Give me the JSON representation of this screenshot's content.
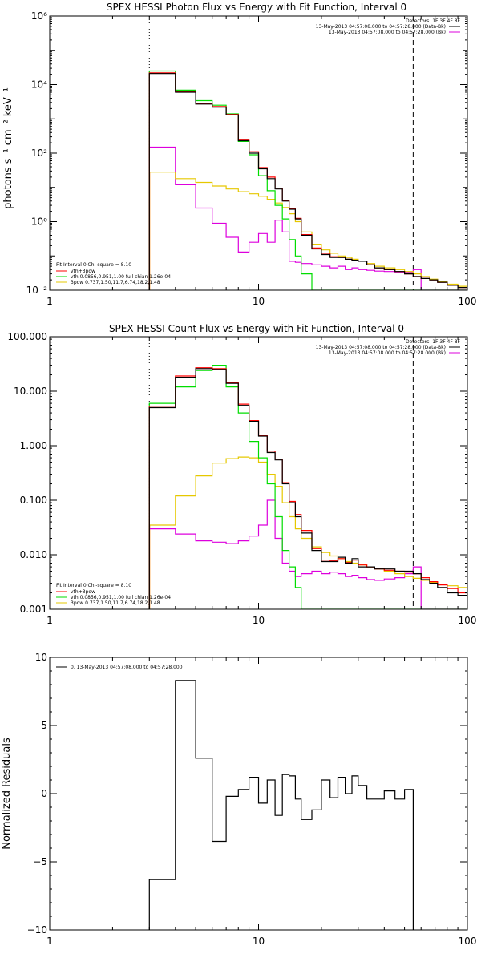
{
  "colors": {
    "data": "#000000",
    "vth_plus_3pow": "#ff0000",
    "vth": "#00dd00",
    "3pow": "#e6c800",
    "background": "#dd00dd",
    "cutoff": "#ff8800"
  },
  "panels": {
    "photon": {
      "title": "SPEX HESSI Photon Flux vs Energy with Fit Function, Interval 0",
      "ylabel": "photons s⁻¹ cm⁻² keV⁻¹",
      "legend_right": {
        "detectors": "Detectors: 1F 3F 4F 8F",
        "line1": "13-May-2013 04:57:08.000 to 04:57:28.000 (Data-Bk)",
        "line2": "13-May-2013 04:57:08.000 to 04:57:28.000 (Bk)"
      },
      "legend_left": {
        "fit": "Fit Interval 0    Chi-square = 8.10",
        "l1": "vth+3pow",
        "l2": "vth 0.0856,0.951,1.00  full chian 1.26e-04",
        "l3": "3pow 0.737,1.50,11.7,6.74,18.2,1.48"
      }
    },
    "count": {
      "title": "SPEX HESSI Count Flux vs Energy with Fit Function, Interval 0",
      "legend_right": {
        "detectors": "Detectors: 1F 3F 4F 8F",
        "line1": "13-May-2013 04:57:08.000 to 04:57:28.000 (Data-Bk)",
        "line2": "13-May-2013 04:57:08.000 to 04:57:28.000 (Bk)"
      },
      "legend_left": {
        "fit": "Fit Interval 0    Chi-square = 8.10",
        "l1": "vth+3pow",
        "l2": "vth 0.0856,0.951,1.00  full chian 1.26e-04",
        "l3": "3pow 0.737,1.50,11.7,6.74,18.2,1.48"
      }
    },
    "resid": {
      "ylabel": "Normalized Residuals",
      "legend": "0. 13-May-2013 04:57:08.000 to 04:57:28.000"
    }
  },
  "chart_data": [
    {
      "type": "line",
      "title": "SPEX HESSI Photon Flux vs Energy with Fit Function, Interval 0",
      "ylabel": "photons s⁻¹ cm⁻² keV⁻¹",
      "xscale": "log",
      "yscale": "log",
      "xlim": [
        1,
        100
      ],
      "ylim": [
        0.01,
        1000000
      ],
      "xticks": [
        "1",
        "10",
        "100"
      ],
      "yticks": [
        "10⁻²",
        "10⁰",
        "10²",
        "10⁴",
        "10⁶"
      ],
      "energy_edges": [
        3,
        4,
        5,
        6,
        7,
        8,
        9,
        10,
        11,
        12,
        13,
        14,
        15,
        16,
        18,
        20,
        22,
        24,
        26,
        28,
        30,
        33,
        36,
        40,
        45,
        50,
        55,
        60,
        66,
        72,
        80,
        90,
        100
      ],
      "vlines": [
        3,
        55
      ],
      "series": [
        {
          "name": "Data-Bk",
          "values": [
            21000,
            6000,
            2700,
            2200,
            1300,
            230,
            100,
            35,
            18,
            9,
            4,
            2.3,
            1.2,
            0.4,
            0.16,
            0.11,
            0.09,
            0.09,
            0.08,
            0.075,
            0.07,
            0.055,
            0.045,
            0.04,
            0.035,
            0.03,
            0.025,
            0.022,
            0.02,
            0.017,
            0.014,
            0.012
          ]
        },
        {
          "name": "vth+3pow",
          "values": [
            22000,
            6200,
            2800,
            2300,
            1350,
            240,
            110,
            38,
            20,
            9.5,
            4.2,
            2.4,
            1.25,
            0.42,
            0.17,
            0.12,
            0.095,
            0.09,
            0.08,
            0.075,
            0.07,
            0.055,
            0.045,
            0.04,
            0.035,
            0.03,
            0.025,
            0.022,
            0.02,
            0.017,
            0.014,
            0.012
          ]
        },
        {
          "name": "vth",
          "values": [
            25000,
            6900,
            3400,
            2500,
            1400,
            220,
            90,
            22,
            8,
            3,
            1.2,
            0.3,
            0.1,
            0.03,
            0.01,
            0.01,
            0.01,
            0.01,
            0.01,
            0.01,
            0.01,
            0.01,
            0.01,
            0.01,
            0.01,
            0.01,
            0.01,
            0.01,
            0.01,
            0.01,
            0.01,
            0.01
          ]
        },
        {
          "name": "3pow",
          "values": [
            28,
            18,
            14,
            11,
            9,
            7.5,
            6.5,
            5.5,
            4.5,
            3.5,
            2.6,
            1.7,
            1.0,
            0.5,
            0.22,
            0.15,
            0.12,
            0.1,
            0.09,
            0.08,
            0.07,
            0.06,
            0.05,
            0.045,
            0.04,
            0.035,
            0.03,
            0.025,
            0.021,
            0.018,
            0.015,
            0.013
          ]
        },
        {
          "name": "Bk",
          "values": [
            150,
            12,
            2.5,
            0.9,
            0.35,
            0.13,
            0.25,
            0.45,
            0.25,
            1.1,
            0.5,
            0.07,
            0.065,
            0.06,
            0.055,
            0.05,
            0.045,
            0.05,
            0.04,
            0.045,
            0.04,
            0.038,
            0.036,
            0.035,
            0.034,
            0.033,
            0.04,
            0.01,
            0.01,
            0.01,
            0.01,
            0.01
          ]
        }
      ]
    },
    {
      "type": "line",
      "title": "SPEX HESSI Count Flux vs Energy with Fit Function, Interval 0",
      "xscale": "log",
      "yscale": "log",
      "xlim": [
        1,
        100
      ],
      "ylim": [
        0.001,
        100
      ],
      "xticks": [
        "1",
        "10",
        "100"
      ],
      "yticks": [
        "0.001",
        "0.010",
        "0.100",
        "1.000",
        "10.000",
        "100.000"
      ],
      "energy_edges": [
        3,
        4,
        5,
        6,
        7,
        8,
        9,
        10,
        11,
        12,
        13,
        14,
        15,
        16,
        18,
        20,
        22,
        24,
        26,
        28,
        30,
        33,
        36,
        40,
        45,
        50,
        55,
        60,
        66,
        72,
        80,
        90,
        100
      ],
      "vlines": [
        3,
        55
      ],
      "series": [
        {
          "name": "Data-Bk",
          "values": [
            5.0,
            18,
            26,
            25,
            14,
            5.5,
            2.8,
            1.5,
            0.75,
            0.55,
            0.2,
            0.09,
            0.05,
            0.025,
            0.012,
            0.0075,
            0.0075,
            0.009,
            0.007,
            0.0085,
            0.006,
            0.006,
            0.0055,
            0.0055,
            0.005,
            0.005,
            0.0045,
            0.0035,
            0.003,
            0.0025,
            0.002,
            0.0018
          ]
        },
        {
          "name": "vth+3pow",
          "values": [
            5.3,
            19,
            27,
            26,
            14.5,
            5.8,
            2.9,
            1.55,
            0.8,
            0.57,
            0.21,
            0.095,
            0.055,
            0.028,
            0.013,
            0.008,
            0.0078,
            0.0085,
            0.0072,
            0.008,
            0.0065,
            0.006,
            0.0055,
            0.0052,
            0.005,
            0.0048,
            0.0045,
            0.0038,
            0.0032,
            0.0028,
            0.0024,
            0.002
          ]
        },
        {
          "name": "vth",
          "values": [
            6.0,
            12,
            24,
            30,
            12,
            4.0,
            1.2,
            0.6,
            0.2,
            0.05,
            0.012,
            0.006,
            0.0025,
            0.001,
            0.001,
            0.001,
            0.001,
            0.001,
            0.001,
            0.001,
            0.001,
            0.001,
            0.001,
            0.001,
            0.001,
            0.001,
            0.001,
            0.001,
            0.001,
            0.001,
            0.001,
            0.001
          ]
        },
        {
          "name": "3pow",
          "values": [
            0.035,
            0.12,
            0.28,
            0.48,
            0.58,
            0.62,
            0.6,
            0.5,
            0.3,
            0.18,
            0.09,
            0.05,
            0.03,
            0.02,
            0.014,
            0.011,
            0.0095,
            0.0085,
            0.0075,
            0.007,
            0.0065,
            0.006,
            0.0055,
            0.005,
            0.0045,
            0.004,
            0.0037,
            0.0034,
            0.0031,
            0.0029,
            0.0027,
            0.0025
          ]
        },
        {
          "name": "Bk",
          "values": [
            0.03,
            0.024,
            0.018,
            0.017,
            0.016,
            0.018,
            0.022,
            0.035,
            0.1,
            0.02,
            0.007,
            0.005,
            0.004,
            0.0045,
            0.005,
            0.0045,
            0.0048,
            0.0045,
            0.004,
            0.0042,
            0.0038,
            0.0035,
            0.0034,
            0.0036,
            0.0038,
            0.0045,
            0.006,
            0.001,
            0.001,
            0.001,
            0.001,
            0.001
          ]
        }
      ]
    },
    {
      "type": "line",
      "ylabel": "Normalized Residuals",
      "xscale": "log",
      "yscale": "linear",
      "xlim": [
        1,
        100
      ],
      "ylim": [
        -10,
        10
      ],
      "xticks": [
        "1",
        "10",
        "100"
      ],
      "yticks": [
        "−10",
        "−5",
        "0",
        "5",
        "10"
      ],
      "energy_edges": [
        3,
        4,
        5,
        6,
        7,
        8,
        9,
        10,
        11,
        12,
        13,
        14,
        15,
        16,
        18,
        20,
        22,
        24,
        26,
        28,
        30,
        33,
        36,
        40,
        45,
        50,
        55
      ],
      "series": [
        {
          "name": "0. 13-May-2013 04:57:08.000 to 04:57:28.000",
          "values": [
            -6.3,
            8.3,
            2.6,
            -3.5,
            -0.2,
            0.3,
            1.2,
            -0.7,
            1.0,
            -1.6,
            1.4,
            1.3,
            -0.4,
            -1.9,
            -1.2,
            1.0,
            -0.3,
            1.2,
            0.0,
            1.3,
            0.6,
            -0.4,
            -0.4,
            0.2,
            -0.4,
            0.3
          ]
        }
      ]
    }
  ]
}
